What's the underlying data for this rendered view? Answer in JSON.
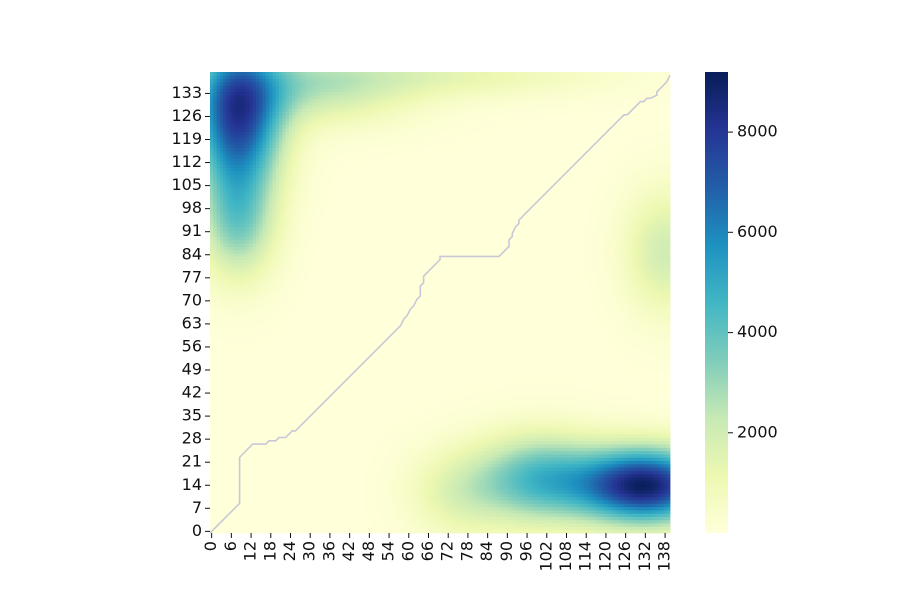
{
  "chart_data": {
    "type": "heatmap",
    "title": "",
    "xlabel": "",
    "ylabel": "",
    "n": 140,
    "x_ticks": [
      0,
      6,
      12,
      18,
      24,
      30,
      36,
      42,
      48,
      54,
      60,
      66,
      72,
      78,
      84,
      90,
      96,
      102,
      108,
      114,
      120,
      126,
      132,
      138
    ],
    "y_ticks": [
      0,
      7,
      14,
      21,
      28,
      35,
      42,
      49,
      56,
      63,
      70,
      77,
      84,
      91,
      98,
      105,
      112,
      119,
      126,
      133
    ],
    "colormap": "YlGnBu",
    "value_range": [
      0,
      9200
    ],
    "colorbar": {
      "ticks": [
        2000,
        4000,
        6000,
        8000
      ],
      "range": [
        0,
        9200
      ]
    },
    "path_color": "#c8c8d8",
    "path": [
      [
        0,
        0
      ],
      [
        9,
        9
      ],
      [
        9,
        23
      ],
      [
        13,
        27
      ],
      [
        17,
        27
      ],
      [
        18,
        28
      ],
      [
        20,
        28
      ],
      [
        21,
        29
      ],
      [
        23,
        29
      ],
      [
        24,
        30
      ],
      [
        25,
        31
      ],
      [
        26,
        31
      ],
      [
        58,
        63
      ],
      [
        59,
        65
      ],
      [
        60,
        66
      ],
      [
        61,
        68
      ],
      [
        62,
        69
      ],
      [
        63,
        71
      ],
      [
        64,
        72
      ],
      [
        64,
        75
      ],
      [
        65,
        76
      ],
      [
        65,
        78
      ],
      [
        70,
        83
      ],
      [
        70,
        84
      ],
      [
        88,
        84
      ],
      [
        91,
        87
      ],
      [
        91,
        89
      ],
      [
        92,
        90
      ],
      [
        92,
        91
      ],
      [
        93,
        93
      ],
      [
        94,
        94
      ],
      [
        94,
        95
      ],
      [
        96,
        97
      ],
      [
        124,
        125
      ],
      [
        126,
        127
      ],
      [
        127,
        127
      ],
      [
        131,
        131
      ],
      [
        132,
        131
      ],
      [
        133,
        132
      ],
      [
        134,
        132
      ],
      [
        136,
        133
      ],
      [
        136,
        134
      ],
      [
        139,
        137
      ],
      [
        140,
        139
      ]
    ],
    "blobs": [
      {
        "x": 132,
        "y": 14,
        "sx": 20,
        "sy": 11,
        "amp": 8900
      },
      {
        "x": 100,
        "y": 16,
        "sx": 18,
        "sy": 13,
        "amp": 4200
      },
      {
        "x": 76,
        "y": 12,
        "sx": 15,
        "sy": 13,
        "amp": 1600
      },
      {
        "x": 8,
        "y": 126,
        "sx": 13,
        "sy": 22,
        "amp": 7600
      },
      {
        "x": 8,
        "y": 94,
        "sx": 11,
        "sy": 17,
        "amp": 3200
      },
      {
        "x": 30,
        "y": 135,
        "sx": 30,
        "sy": 11,
        "amp": 2300
      },
      {
        "x": 138,
        "y": 85,
        "sx": 12,
        "sy": 18,
        "amp": 2000
      },
      {
        "x": 72,
        "y": 139,
        "sx": 45,
        "sy": 7,
        "amp": 1200
      }
    ]
  }
}
